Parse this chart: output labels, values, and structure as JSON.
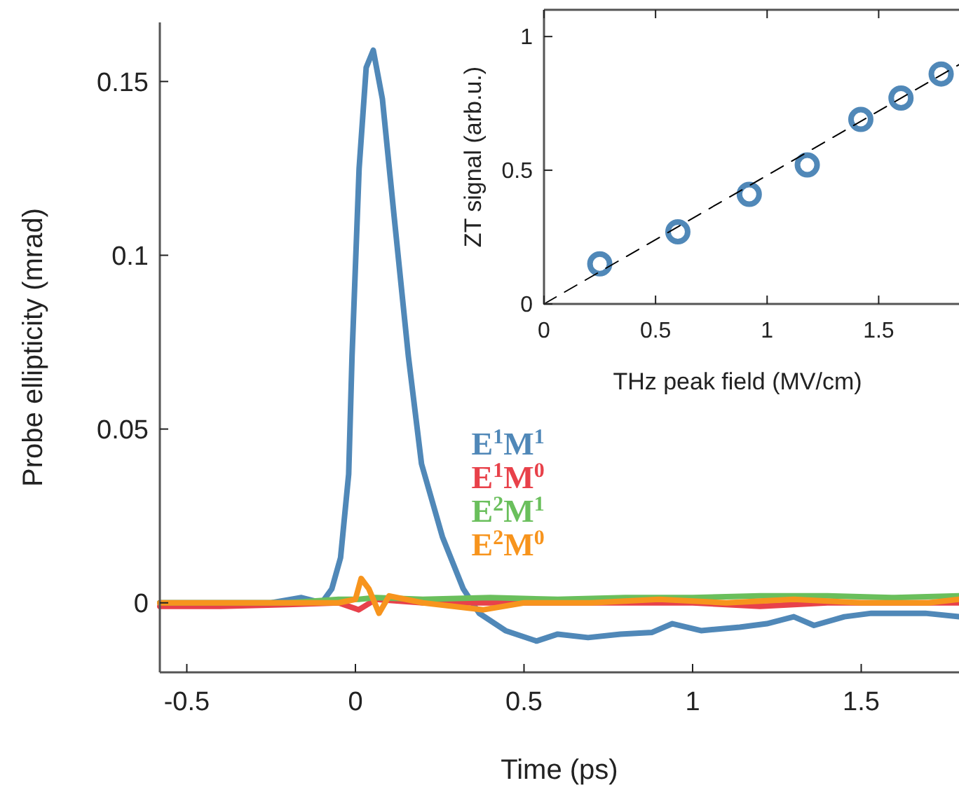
{
  "chart_data": [
    {
      "type": "line",
      "xlabel": "Time (ps)",
      "ylabel": "Probe ellipticity (mrad)",
      "xlim": [
        -0.58,
        1.79
      ],
      "xticks": [
        -0.5,
        0,
        0.5,
        1,
        1.5
      ],
      "ylim": [
        -0.02,
        0.167
      ],
      "yticks": [
        0,
        0.05,
        0.1,
        0.15
      ],
      "legend": "center",
      "series": [
        {
          "name": "E$^{1}$M$^{1}$",
          "color": "#5088b8",
          "x": [
            -0.58,
            -0.4,
            -0.25,
            -0.16,
            -0.1,
            -0.07,
            -0.044,
            -0.02,
            -0.01,
            0.011,
            0.032,
            0.053,
            0.08,
            0.115,
            0.157,
            0.196,
            0.258,
            0.32,
            0.367,
            0.445,
            0.537,
            0.6,
            0.69,
            0.786,
            0.88,
            0.94,
            1.025,
            1.14,
            1.22,
            1.3,
            1.36,
            1.45,
            1.53,
            1.69,
            1.79
          ],
          "values": [
            0,
            0,
            0,
            0.0015,
            0,
            0.004,
            0.013,
            0.037,
            0.071,
            0.125,
            0.154,
            0.159,
            0.145,
            0.111,
            0.071,
            0.04,
            0.019,
            0.004,
            -0.003,
            -0.008,
            -0.011,
            -0.009,
            -0.01,
            -0.009,
            -0.0085,
            -0.006,
            -0.008,
            -0.007,
            -0.006,
            -0.004,
            -0.0065,
            -0.004,
            -0.003,
            -0.003,
            -0.004
          ]
        },
        {
          "name": "E$^{1}$M$^{0}$",
          "color": "#e8414a",
          "x": [
            -0.58,
            -0.4,
            -0.2,
            -0.05,
            0.01,
            0.06,
            0.2,
            0.4,
            0.6,
            0.8,
            1.0,
            1.2,
            1.4,
            1.6,
            1.79
          ],
          "values": [
            -0.001,
            -0.001,
            -0.0005,
            0,
            -0.002,
            0.001,
            0,
            0,
            0,
            0,
            0,
            -0.001,
            0,
            0,
            0
          ]
        },
        {
          "name": "E$^{2}$M$^{1}$",
          "color": "#6abf5c",
          "x": [
            -0.58,
            -0.4,
            -0.2,
            -0.05,
            0.01,
            0.06,
            0.2,
            0.4,
            0.6,
            0.8,
            1.0,
            1.2,
            1.4,
            1.6,
            1.79
          ],
          "values": [
            0,
            0,
            0,
            0.001,
            0.001,
            0.0015,
            0.001,
            0.0015,
            0.001,
            0.0015,
            0.0015,
            0.002,
            0.002,
            0.0015,
            0.002
          ]
        },
        {
          "name": "E$^{2}$M$^{0}$",
          "color": "#f7941d",
          "x": [
            -0.58,
            -0.4,
            -0.2,
            -0.05,
            0,
            0.017,
            0.04,
            0.07,
            0.1,
            0.2,
            0.38,
            0.5,
            0.7,
            0.9,
            1.1,
            1.3,
            1.5,
            1.7,
            1.79
          ],
          "values": [
            0,
            0,
            0,
            0,
            0.001,
            0.007,
            0.004,
            -0.003,
            0.002,
            0,
            -0.002,
            0,
            0,
            0.001,
            0,
            0.001,
            0,
            0,
            0.001
          ]
        }
      ]
    },
    {
      "type": "scatter",
      "xlabel": "THz peak field (MV/cm)",
      "ylabel": "ZT signal (arb.u.)",
      "xlim": [
        0,
        1.86
      ],
      "xticks": [
        0,
        0.5,
        1,
        1.5
      ],
      "ylim": [
        0,
        1.1
      ],
      "yticks": [
        0,
        0.5,
        1
      ],
      "series": [
        {
          "marker": "circle",
          "color": "#5088b8",
          "x": [
            0.25,
            0.6,
            0.92,
            1.18,
            1.42,
            1.6,
            1.78
          ],
          "values": [
            0.15,
            0.27,
            0.41,
            0.52,
            0.69,
            0.77,
            0.86
          ]
        },
        {
          "type": "line",
          "color": "#000000",
          "line_style": "dashed",
          "x": [
            0,
            1.86
          ],
          "values": [
            0,
            0.895
          ]
        }
      ]
    }
  ]
}
